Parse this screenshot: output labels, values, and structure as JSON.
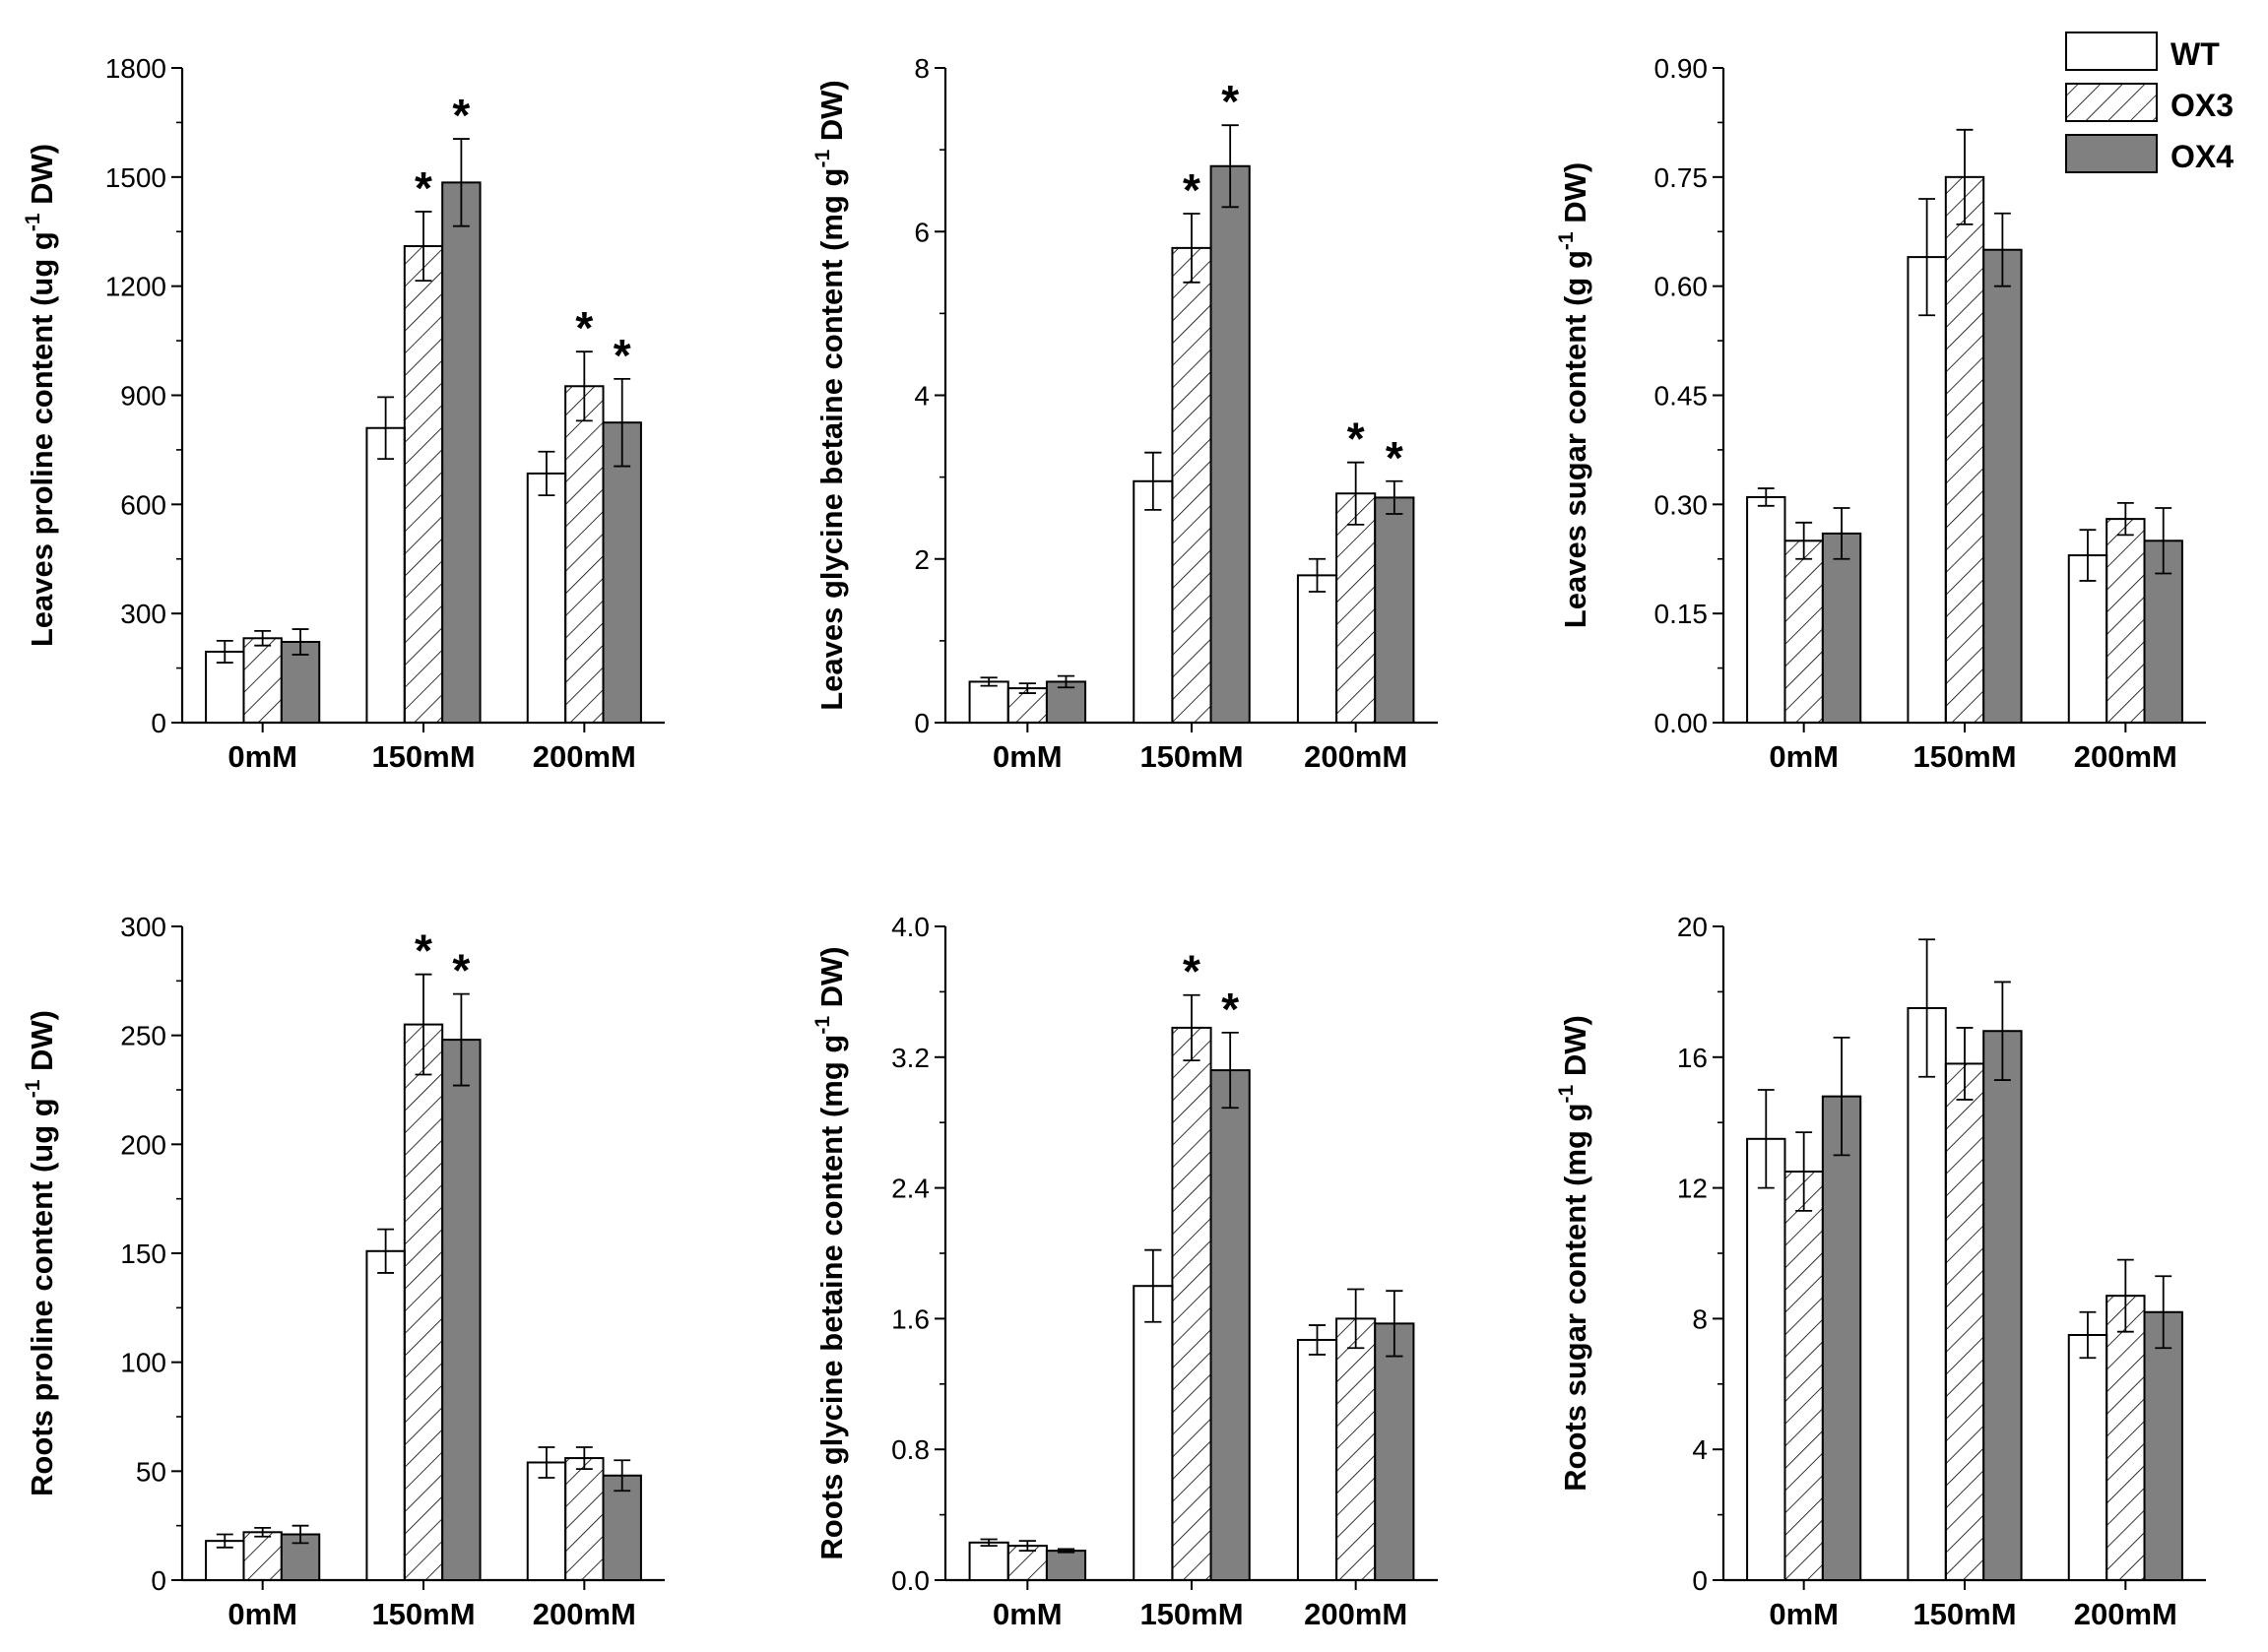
{
  "legend": {
    "position": "top-right",
    "entries": [
      {
        "label": "WT",
        "pattern": "empty"
      },
      {
        "label": "OX3",
        "pattern": "hatched"
      },
      {
        "label": "OX4",
        "pattern": "solid-gray"
      }
    ]
  },
  "colors": {
    "axis": "#000000",
    "bar_fill_ox4": "#808080",
    "bar_stroke": "#000000"
  },
  "chart_data": [
    {
      "type": "bar",
      "title": "",
      "xlabel": "",
      "ylabel": {
        "pre": "Leaves proline content (ug g",
        "sup": "-1",
        "post": " DW)"
      },
      "ylim": [
        0,
        1800
      ],
      "yticks": [
        0,
        300,
        600,
        900,
        1200,
        1500,
        1800
      ],
      "ytick_labels": [
        "0",
        "300",
        "600",
        "900",
        "1200",
        "1500",
        "1800"
      ],
      "categories": [
        "0mM",
        "150mM",
        "200mM"
      ],
      "series": [
        {
          "name": "WT",
          "values": [
            195,
            810,
            685
          ],
          "errors": [
            30,
            85,
            60
          ],
          "sig": [
            false,
            false,
            false
          ]
        },
        {
          "name": "OX3",
          "values": [
            232,
            1310,
            925
          ],
          "errors": [
            20,
            95,
            95
          ],
          "sig": [
            false,
            true,
            true
          ]
        },
        {
          "name": "OX4",
          "values": [
            222,
            1485,
            825
          ],
          "errors": [
            35,
            120,
            120
          ],
          "sig": [
            false,
            true,
            true
          ]
        }
      ],
      "sig_symbol": "*"
    },
    {
      "type": "bar",
      "title": "",
      "xlabel": "",
      "ylabel": {
        "pre": "Leaves glycine betaine content (mg g",
        "sup": "-1",
        "post": " DW)"
      },
      "ylim": [
        0,
        8
      ],
      "yticks": [
        0,
        2,
        4,
        6,
        8
      ],
      "ytick_labels": [
        "0",
        "2",
        "4",
        "6",
        "8"
      ],
      "categories": [
        "0mM",
        "150mM",
        "200mM"
      ],
      "series": [
        {
          "name": "WT",
          "values": [
            0.5,
            2.95,
            1.8
          ],
          "errors": [
            0.05,
            0.35,
            0.2
          ],
          "sig": [
            false,
            false,
            false
          ]
        },
        {
          "name": "OX3",
          "values": [
            0.42,
            5.8,
            2.8
          ],
          "errors": [
            0.06,
            0.42,
            0.38
          ],
          "sig": [
            false,
            true,
            true
          ]
        },
        {
          "name": "OX4",
          "values": [
            0.5,
            6.8,
            2.75
          ],
          "errors": [
            0.07,
            0.5,
            0.2
          ],
          "sig": [
            false,
            true,
            true
          ]
        }
      ],
      "sig_symbol": "*"
    },
    {
      "type": "bar",
      "title": "",
      "xlabel": "",
      "ylabel": {
        "pre": "Leaves sugar content (g g",
        "sup": "-1",
        "post": " DW)"
      },
      "ylim": [
        0,
        0.9
      ],
      "yticks": [
        0,
        0.15,
        0.3,
        0.45,
        0.6,
        0.75,
        0.9
      ],
      "ytick_labels": [
        "0.00",
        "0.15",
        "0.30",
        "0.45",
        "0.60",
        "0.75",
        "0.90"
      ],
      "categories": [
        "0mM",
        "150mM",
        "200mM"
      ],
      "series": [
        {
          "name": "WT",
          "values": [
            0.31,
            0.64,
            0.23
          ],
          "errors": [
            0.012,
            0.08,
            0.035
          ],
          "sig": [
            false,
            false,
            false
          ]
        },
        {
          "name": "OX3",
          "values": [
            0.25,
            0.75,
            0.28
          ],
          "errors": [
            0.025,
            0.065,
            0.022
          ],
          "sig": [
            false,
            false,
            false
          ]
        },
        {
          "name": "OX4",
          "values": [
            0.26,
            0.65,
            0.25
          ],
          "errors": [
            0.035,
            0.05,
            0.045
          ],
          "sig": [
            false,
            false,
            false
          ]
        }
      ],
      "sig_symbol": "*"
    },
    {
      "type": "bar",
      "title": "",
      "xlabel": "",
      "ylabel": {
        "pre": "Roots proline content (ug g",
        "sup": "-1",
        "post": " DW)"
      },
      "ylim": [
        0,
        300
      ],
      "yticks": [
        0,
        50,
        100,
        150,
        200,
        250,
        300
      ],
      "ytick_labels": [
        "0",
        "50",
        "100",
        "150",
        "200",
        "250",
        "300"
      ],
      "categories": [
        "0mM",
        "150mM",
        "200mM"
      ],
      "series": [
        {
          "name": "WT",
          "values": [
            18,
            151,
            54
          ],
          "errors": [
            3,
            10,
            7
          ],
          "sig": [
            false,
            false,
            false
          ]
        },
        {
          "name": "OX3",
          "values": [
            22,
            255,
            56
          ],
          "errors": [
            2,
            23,
            5
          ],
          "sig": [
            false,
            true,
            false
          ]
        },
        {
          "name": "OX4",
          "values": [
            21,
            248,
            48
          ],
          "errors": [
            4,
            21,
            7
          ],
          "sig": [
            false,
            true,
            false
          ]
        }
      ],
      "sig_symbol": "*"
    },
    {
      "type": "bar",
      "title": "",
      "xlabel": "",
      "ylabel": {
        "pre": "Roots glycine betaine content (mg g",
        "sup": "-1",
        "post": " DW)"
      },
      "ylim": [
        0,
        4
      ],
      "yticks": [
        0,
        0.8,
        1.6,
        2.4,
        3.2,
        4
      ],
      "ytick_labels": [
        "0.0",
        "0.8",
        "1.6",
        "2.4",
        "3.2",
        "4.0"
      ],
      "categories": [
        "0mM",
        "150mM",
        "200mM"
      ],
      "series": [
        {
          "name": "WT",
          "values": [
            0.23,
            1.8,
            1.47
          ],
          "errors": [
            0.02,
            0.22,
            0.09
          ],
          "sig": [
            false,
            false,
            false
          ]
        },
        {
          "name": "OX3",
          "values": [
            0.21,
            3.38,
            1.6
          ],
          "errors": [
            0.03,
            0.2,
            0.18
          ],
          "sig": [
            false,
            true,
            false
          ]
        },
        {
          "name": "OX4",
          "values": [
            0.18,
            3.12,
            1.57
          ],
          "errors": [
            0.01,
            0.23,
            0.2
          ],
          "sig": [
            false,
            true,
            false
          ]
        }
      ],
      "sig_symbol": "*"
    },
    {
      "type": "bar",
      "title": "",
      "xlabel": "",
      "ylabel": {
        "pre": "Roots sugar content (mg g",
        "sup": "-1",
        "post": " DW)"
      },
      "ylim": [
        0,
        20
      ],
      "yticks": [
        0,
        4,
        8,
        12,
        16,
        20
      ],
      "ytick_labels": [
        "0",
        "4",
        "8",
        "12",
        "16",
        "20"
      ],
      "categories": [
        "0mM",
        "150mM",
        "200mM"
      ],
      "series": [
        {
          "name": "WT",
          "values": [
            13.5,
            17.5,
            7.5
          ],
          "errors": [
            1.5,
            2.1,
            0.7
          ],
          "sig": [
            false,
            false,
            false
          ]
        },
        {
          "name": "OX3",
          "values": [
            12.5,
            15.8,
            8.7
          ],
          "errors": [
            1.2,
            1.1,
            1.1
          ],
          "sig": [
            false,
            false,
            false
          ]
        },
        {
          "name": "OX4",
          "values": [
            14.8,
            16.8,
            8.2
          ],
          "errors": [
            1.8,
            1.5,
            1.1
          ],
          "sig": [
            false,
            false,
            false
          ]
        }
      ],
      "sig_symbol": "*"
    }
  ]
}
